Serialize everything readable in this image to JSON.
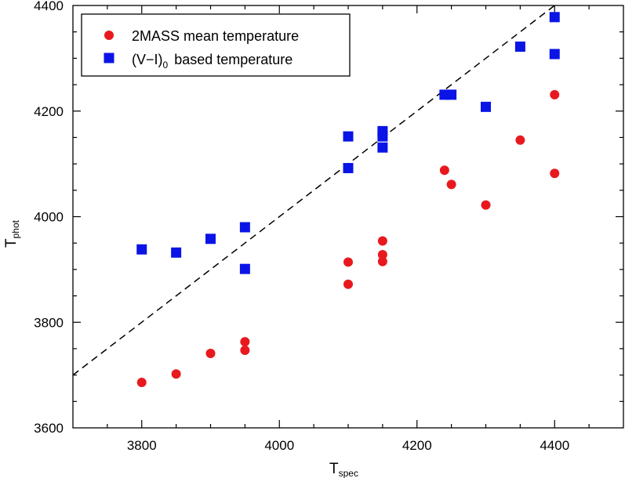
{
  "chart_data": {
    "type": "scatter",
    "title": "",
    "xlabel": {
      "main": "T",
      "sub": "spec"
    },
    "ylabel": {
      "main": "T",
      "sub": "phot"
    },
    "xlim": [
      3700,
      4500
    ],
    "ylim": [
      3600,
      4400
    ],
    "x_ticks": [
      3800,
      4000,
      4200,
      4400
    ],
    "y_ticks": [
      3600,
      3800,
      4000,
      4200,
      4400
    ],
    "x_tick_labels": [
      "3800",
      "4000",
      "4200",
      "4400"
    ],
    "y_tick_labels": [
      "3600",
      "3800",
      "4000",
      "4200",
      "4400"
    ],
    "grid": false,
    "legend_position": "top-left",
    "reference_line": {
      "style": "dashed",
      "color": "#000000",
      "points": [
        [
          3700,
          3700
        ],
        [
          4400,
          4400
        ]
      ]
    },
    "series": [
      {
        "name": "2MASS mean temperature",
        "marker": "circle",
        "color": "#e8191e",
        "points": [
          [
            3800,
            3686
          ],
          [
            3850,
            3702
          ],
          [
            3900,
            3741
          ],
          [
            3950,
            3747
          ],
          [
            3950,
            3763
          ],
          [
            4100,
            3872
          ],
          [
            4100,
            3914
          ],
          [
            4150,
            3915
          ],
          [
            4150,
            3928
          ],
          [
            4150,
            3954
          ],
          [
            4240,
            4088
          ],
          [
            4250,
            4061
          ],
          [
            4300,
            4022
          ],
          [
            4350,
            4145
          ],
          [
            4400,
            4082
          ],
          [
            4400,
            4231
          ]
        ]
      },
      {
        "name": "(V−I)",
        "name_sub": "0",
        "name_suffix": "based temperature",
        "marker": "square",
        "color": "#0a14e6",
        "points": [
          [
            3800,
            3938
          ],
          [
            3850,
            3932
          ],
          [
            3900,
            3958
          ],
          [
            3950,
            3980
          ],
          [
            3950,
            3901
          ],
          [
            4100,
            4092
          ],
          [
            4100,
            4152
          ],
          [
            4150,
            4131
          ],
          [
            4150,
            4152
          ],
          [
            4150,
            4162
          ],
          [
            4240,
            4231
          ],
          [
            4250,
            4231
          ],
          [
            4300,
            4208
          ],
          [
            4350,
            4322
          ],
          [
            4400,
            4308
          ],
          [
            4400,
            4378
          ]
        ]
      }
    ]
  }
}
